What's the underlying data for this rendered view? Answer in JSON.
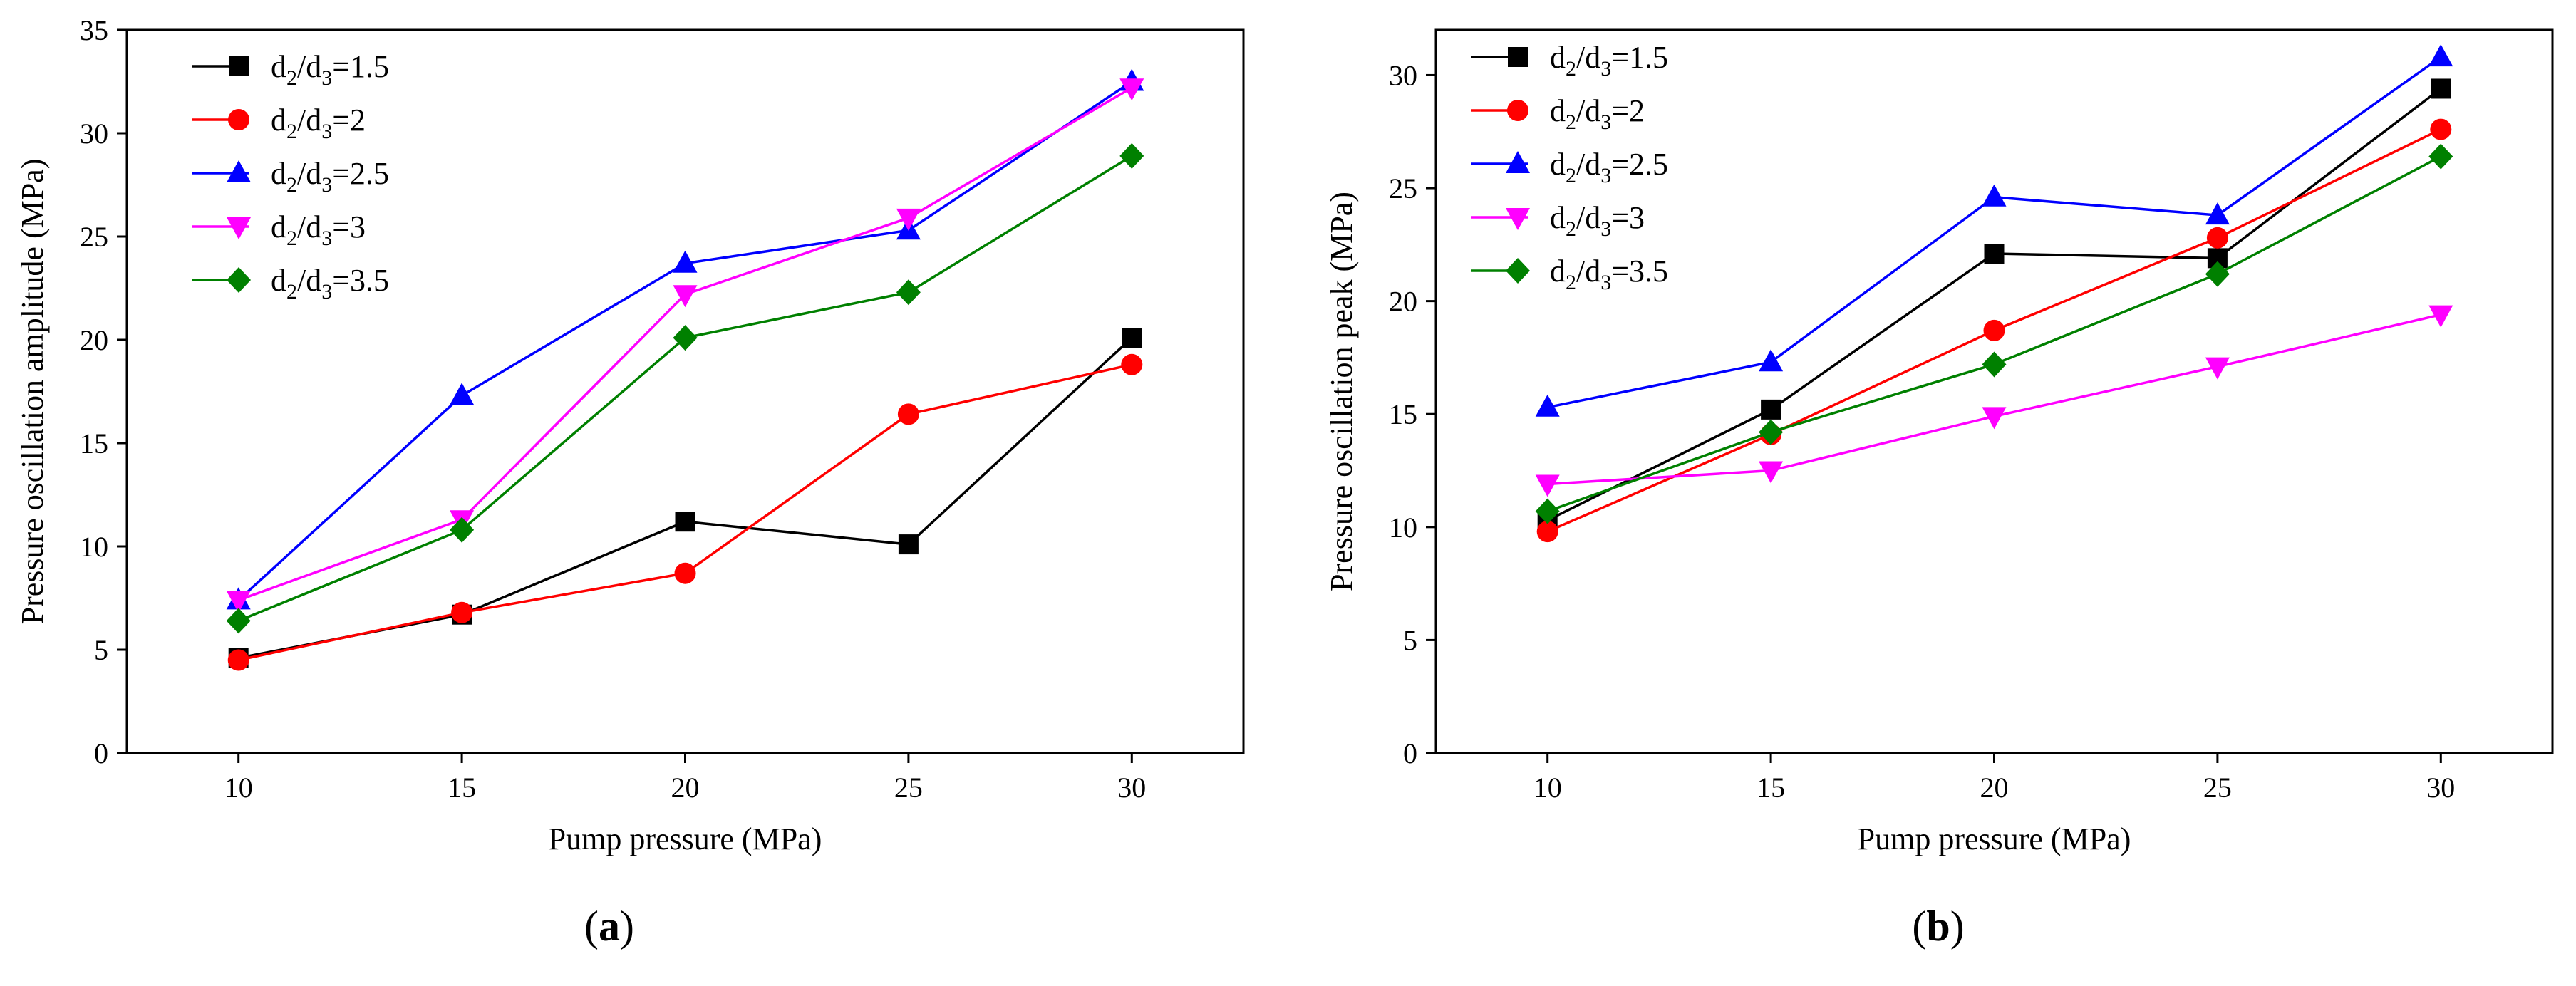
{
  "chart_data": [
    {
      "type": "line",
      "panel_label": "a",
      "xlabel": "Pump pressure (MPa)",
      "ylabel": "Pressure  oscillation amplitude  (MPa)",
      "x": [
        10,
        15,
        20,
        25,
        30
      ],
      "xlim": [
        7.5,
        32.5
      ],
      "ylim": [
        0,
        35
      ],
      "xticks": [
        "10",
        "15",
        "20",
        "25",
        "30"
      ],
      "yticks": [
        "0",
        "5",
        "10",
        "15",
        "20",
        "25",
        "30",
        "35"
      ],
      "grid": false,
      "legend_position": "top-left",
      "series": [
        {
          "legend": {
            "prefix": "d",
            "sub1": "2",
            "mid": "/d",
            "sub2": "3",
            "suffix": "=1.5"
          },
          "color": "#000000",
          "marker": "square",
          "values": [
            4.6,
            6.7,
            11.2,
            10.1,
            20.1
          ]
        },
        {
          "legend": {
            "prefix": "d",
            "sub1": "2",
            "mid": "/d",
            "sub2": "3",
            "suffix": "=2"
          },
          "color": "#ff0000",
          "marker": "circle",
          "values": [
            4.5,
            6.8,
            8.7,
            16.4,
            18.8
          ]
        },
        {
          "legend": {
            "prefix": "d",
            "sub1": "2",
            "mid": "/d",
            "sub2": "3",
            "suffix": "=2.5"
          },
          "color": "#0000ff",
          "marker": "triangle-up",
          "values": [
            7.4,
            17.3,
            23.7,
            25.3,
            32.5
          ]
        },
        {
          "legend": {
            "prefix": "d",
            "sub1": "2",
            "mid": "/d",
            "sub2": "3",
            "suffix": "=3"
          },
          "color": "#ff00ff",
          "marker": "triangle-down",
          "values": [
            7.4,
            11.3,
            22.2,
            25.9,
            32.2
          ]
        },
        {
          "legend": {
            "prefix": "d",
            "sub1": "2",
            "mid": "/d",
            "sub2": "3",
            "suffix": "=3.5"
          },
          "color": "#008000",
          "marker": "diamond",
          "values": [
            6.4,
            10.8,
            20.1,
            22.3,
            28.9
          ]
        }
      ]
    },
    {
      "type": "line",
      "panel_label": "b",
      "xlabel": "Pump pressure (MPa)",
      "ylabel": "Pressure  oscillation peak  (MPa)",
      "x": [
        10,
        15,
        20,
        25,
        30
      ],
      "xlim": [
        7.5,
        32.5
      ],
      "ylim": [
        0,
        32
      ],
      "xticks": [
        "10",
        "15",
        "20",
        "25",
        "30"
      ],
      "yticks": [
        "0",
        "5",
        "10",
        "15",
        "20",
        "25",
        "30"
      ],
      "grid": false,
      "legend_position": "top-left",
      "series": [
        {
          "legend": {
            "prefix": "d",
            "sub1": "2",
            "mid": "/d",
            "sub2": "3",
            "suffix": "=1.5"
          },
          "color": "#000000",
          "marker": "square",
          "values": [
            10.3,
            15.2,
            22.1,
            21.9,
            29.4
          ]
        },
        {
          "legend": {
            "prefix": "d",
            "sub1": "2",
            "mid": "/d",
            "sub2": "3",
            "suffix": "=2"
          },
          "color": "#ff0000",
          "marker": "circle",
          "values": [
            9.8,
            14.1,
            18.7,
            22.8,
            27.6
          ]
        },
        {
          "legend": {
            "prefix": "d",
            "sub1": "2",
            "mid": "/d",
            "sub2": "3",
            "suffix": "=2.5"
          },
          "color": "#0000ff",
          "marker": "triangle-up",
          "values": [
            15.3,
            17.3,
            24.6,
            23.8,
            30.8
          ]
        },
        {
          "legend": {
            "prefix": "d",
            "sub1": "2",
            "mid": "/d",
            "sub2": "3",
            "suffix": "=3"
          },
          "color": "#ff00ff",
          "marker": "triangle-down",
          "values": [
            11.9,
            12.5,
            14.9,
            17.1,
            19.4
          ]
        },
        {
          "legend": {
            "prefix": "d",
            "sub1": "2",
            "mid": "/d",
            "sub2": "3",
            "suffix": "=3.5"
          },
          "color": "#008000",
          "marker": "diamond",
          "values": [
            10.7,
            14.2,
            17.2,
            21.2,
            26.4
          ]
        }
      ]
    }
  ]
}
